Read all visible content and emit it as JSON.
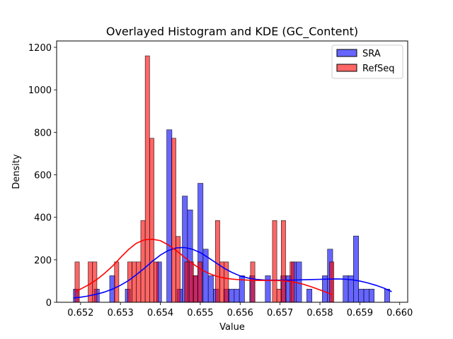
{
  "chart_data": {
    "type": "bar",
    "title": "Overlayed Histogram and KDE (GC_Content)",
    "xlabel": "Value",
    "ylabel": "Density",
    "xlim": [
      0.6514,
      0.6602
    ],
    "ylim": [
      0,
      1230
    ],
    "x_ticks": [
      {
        "value": 0.652,
        "label": "0.652"
      },
      {
        "value": 0.653,
        "label": "0.653"
      },
      {
        "value": 0.654,
        "label": "0.654"
      },
      {
        "value": 0.655,
        "label": "0.655"
      },
      {
        "value": 0.656,
        "label": "0.656"
      },
      {
        "value": 0.657,
        "label": "0.657"
      },
      {
        "value": 0.658,
        "label": "0.658"
      },
      {
        "value": 0.659,
        "label": "0.659"
      },
      {
        "value": 0.66,
        "label": "0.660"
      }
    ],
    "y_ticks": [
      {
        "value": 0,
        "label": "0"
      },
      {
        "value": 200,
        "label": "200"
      },
      {
        "value": 400,
        "label": "400"
      },
      {
        "value": 600,
        "label": "600"
      },
      {
        "value": 800,
        "label": "800"
      },
      {
        "value": 1000,
        "label": "1000"
      },
      {
        "value": 1200,
        "label": "1200"
      }
    ],
    "legend_position": "top-right",
    "grid": false,
    "series": [
      {
        "name": "SRA",
        "color": "#0000ff",
        "bar_opacity": 0.6,
        "bins": [
          {
            "x0": 0.65182,
            "x1": 0.65195,
            "y": 62
          },
          {
            "x0": 0.65234,
            "x1": 0.65247,
            "y": 62
          },
          {
            "x0": 0.65273,
            "x1": 0.65286,
            "y": 125
          },
          {
            "x0": 0.65312,
            "x1": 0.65325,
            "y": 62
          },
          {
            "x0": 0.6539,
            "x1": 0.65403,
            "y": 190
          },
          {
            "x0": 0.65416,
            "x1": 0.65429,
            "y": 812
          },
          {
            "x0": 0.65442,
            "x1": 0.65455,
            "y": 62
          },
          {
            "x0": 0.65455,
            "x1": 0.65468,
            "y": 500
          },
          {
            "x0": 0.65468,
            "x1": 0.65481,
            "y": 435
          },
          {
            "x0": 0.65481,
            "x1": 0.65494,
            "y": 125
          },
          {
            "x0": 0.65494,
            "x1": 0.65507,
            "y": 560
          },
          {
            "x0": 0.65507,
            "x1": 0.6552,
            "y": 250
          },
          {
            "x0": 0.6552,
            "x1": 0.65533,
            "y": 125
          },
          {
            "x0": 0.65533,
            "x1": 0.65546,
            "y": 62
          },
          {
            "x0": 0.65559,
            "x1": 0.65572,
            "y": 62
          },
          {
            "x0": 0.65572,
            "x1": 0.65585,
            "y": 62
          },
          {
            "x0": 0.65585,
            "x1": 0.65598,
            "y": 62
          },
          {
            "x0": 0.65598,
            "x1": 0.65611,
            "y": 125
          },
          {
            "x0": 0.65624,
            "x1": 0.65637,
            "y": 125
          },
          {
            "x0": 0.65663,
            "x1": 0.65676,
            "y": 125
          },
          {
            "x0": 0.65702,
            "x1": 0.65715,
            "y": 125
          },
          {
            "x0": 0.65715,
            "x1": 0.65728,
            "y": 125
          },
          {
            "x0": 0.65728,
            "x1": 0.65741,
            "y": 190
          },
          {
            "x0": 0.65741,
            "x1": 0.65754,
            "y": 190
          },
          {
            "x0": 0.65767,
            "x1": 0.6578,
            "y": 62
          },
          {
            "x0": 0.65806,
            "x1": 0.65819,
            "y": 125
          },
          {
            "x0": 0.65819,
            "x1": 0.65832,
            "y": 250
          },
          {
            "x0": 0.65858,
            "x1": 0.65871,
            "y": 125
          },
          {
            "x0": 0.65871,
            "x1": 0.65884,
            "y": 125
          },
          {
            "x0": 0.65884,
            "x1": 0.65897,
            "y": 312
          },
          {
            "x0": 0.65897,
            "x1": 0.6591,
            "y": 62
          },
          {
            "x0": 0.6591,
            "x1": 0.65923,
            "y": 62
          },
          {
            "x0": 0.65923,
            "x1": 0.65936,
            "y": 62
          },
          {
            "x0": 0.65962,
            "x1": 0.65975,
            "y": 62
          }
        ],
        "kde": {
          "x": [
            0.65182,
            0.652,
            0.6522,
            0.6524,
            0.6526,
            0.6528,
            0.653,
            0.6532,
            0.6534,
            0.6536,
            0.6538,
            0.654,
            0.6542,
            0.6544,
            0.6546,
            0.6548,
            0.655,
            0.6552,
            0.6554,
            0.6556,
            0.6558,
            0.656,
            0.6562,
            0.6564,
            0.6566,
            0.6568,
            0.657,
            0.6572,
            0.6574,
            0.6576,
            0.6578,
            0.658,
            0.6582,
            0.6584,
            0.6586,
            0.6588,
            0.659,
            0.6592,
            0.6594,
            0.6596,
            0.6598
          ],
          "y": [
            20,
            24,
            30,
            38,
            48,
            62,
            80,
            102,
            130,
            160,
            193,
            222,
            244,
            256,
            258,
            250,
            234,
            210,
            185,
            160,
            140,
            124,
            114,
            108,
            105,
            104,
            104,
            104,
            105,
            106,
            107,
            108,
            109,
            110,
            109,
            106,
            100,
            91,
            80,
            67,
            50
          ]
        }
      },
      {
        "name": "RefSeq",
        "color": "#ff0000",
        "bar_opacity": 0.6,
        "bins": [
          {
            "x0": 0.65186,
            "x1": 0.65197,
            "y": 190
          },
          {
            "x0": 0.65219,
            "x1": 0.6523,
            "y": 190
          },
          {
            "x0": 0.6523,
            "x1": 0.65241,
            "y": 190
          },
          {
            "x0": 0.65285,
            "x1": 0.65296,
            "y": 190
          },
          {
            "x0": 0.65318,
            "x1": 0.65329,
            "y": 190
          },
          {
            "x0": 0.65329,
            "x1": 0.6534,
            "y": 190
          },
          {
            "x0": 0.6534,
            "x1": 0.65351,
            "y": 190
          },
          {
            "x0": 0.65351,
            "x1": 0.65362,
            "y": 385
          },
          {
            "x0": 0.65362,
            "x1": 0.65373,
            "y": 1160
          },
          {
            "x0": 0.65373,
            "x1": 0.65384,
            "y": 772
          },
          {
            "x0": 0.65384,
            "x1": 0.65395,
            "y": 190
          },
          {
            "x0": 0.65428,
            "x1": 0.65439,
            "y": 772
          },
          {
            "x0": 0.65439,
            "x1": 0.6545,
            "y": 310
          },
          {
            "x0": 0.65461,
            "x1": 0.65472,
            "y": 190
          },
          {
            "x0": 0.65472,
            "x1": 0.65483,
            "y": 190
          },
          {
            "x0": 0.65483,
            "x1": 0.65494,
            "y": 125
          },
          {
            "x0": 0.65494,
            "x1": 0.65505,
            "y": 190
          },
          {
            "x0": 0.65538,
            "x1": 0.65549,
            "y": 385
          },
          {
            "x0": 0.65549,
            "x1": 0.6556,
            "y": 190
          },
          {
            "x0": 0.6556,
            "x1": 0.65571,
            "y": 190
          },
          {
            "x0": 0.65626,
            "x1": 0.65637,
            "y": 190
          },
          {
            "x0": 0.65681,
            "x1": 0.65692,
            "y": 385
          },
          {
            "x0": 0.65692,
            "x1": 0.65703,
            "y": 62
          },
          {
            "x0": 0.65703,
            "x1": 0.65714,
            "y": 385
          },
          {
            "x0": 0.65725,
            "x1": 0.65736,
            "y": 190
          },
          {
            "x0": 0.65824,
            "x1": 0.65835,
            "y": 190
          }
        ],
        "kde": {
          "x": [
            0.65186,
            0.652,
            0.6522,
            0.6524,
            0.6526,
            0.6528,
            0.653,
            0.6532,
            0.6534,
            0.6536,
            0.6538,
            0.654,
            0.6542,
            0.6544,
            0.6546,
            0.6548,
            0.655,
            0.6552,
            0.6554,
            0.6556,
            0.6558,
            0.656,
            0.6562,
            0.6564,
            0.6566,
            0.6568,
            0.657,
            0.6572,
            0.6574,
            0.6576,
            0.6578,
            0.658,
            0.6582,
            0.6583
          ],
          "y": [
            48,
            62,
            82,
            106,
            136,
            170,
            210,
            248,
            278,
            294,
            297,
            290,
            270,
            243,
            213,
            183,
            157,
            137,
            123,
            114,
            109,
            106,
            104,
            103,
            103,
            103,
            102,
            99,
            93,
            84,
            72,
            58,
            44,
            36
          ]
        }
      }
    ]
  }
}
